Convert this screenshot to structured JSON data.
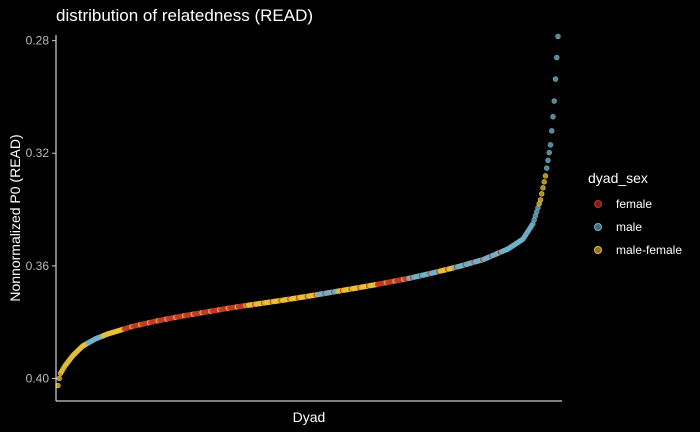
{
  "chart_data": {
    "type": "scatter",
    "title": "distribution of relatedness (READ)",
    "xlabel": "Dyad",
    "ylabel": "Nonnormalized P0 (READ)",
    "y_reversed": true,
    "ylim": [
      0.278,
      0.408
    ],
    "yticks": [
      0.28,
      0.32,
      0.36,
      0.4
    ],
    "ytick_labels": [
      "0.28",
      "0.32",
      "0.36",
      "0.40"
    ],
    "x_ticks_visible": false,
    "grid": false,
    "legend": {
      "title": "dyad_sex",
      "position": "right",
      "entries": [
        {
          "name": "female",
          "color": "#c0392b"
        },
        {
          "name": "male",
          "color": "#72b3c9"
        },
        {
          "name": "male-female",
          "color": "#e6c13a"
        }
      ]
    },
    "x_range": [
      1,
      1000
    ],
    "curve": [
      [
        1,
        0.4025
      ],
      [
        5,
        0.3985
      ],
      [
        15,
        0.3955
      ],
      [
        30,
        0.392
      ],
      [
        50,
        0.3885
      ],
      [
        75,
        0.386
      ],
      [
        100,
        0.3842
      ],
      [
        150,
        0.3815
      ],
      [
        200,
        0.3795
      ],
      [
        250,
        0.3778
      ],
      [
        300,
        0.3763
      ],
      [
        350,
        0.3748
      ],
      [
        400,
        0.3735
      ],
      [
        450,
        0.3722
      ],
      [
        500,
        0.3708
      ],
      [
        550,
        0.3693
      ],
      [
        600,
        0.3678
      ],
      [
        650,
        0.3662
      ],
      [
        700,
        0.3645
      ],
      [
        750,
        0.3625
      ],
      [
        800,
        0.3603
      ],
      [
        850,
        0.3578
      ],
      [
        900,
        0.354
      ],
      [
        930,
        0.3505
      ],
      [
        950,
        0.345
      ],
      [
        965,
        0.3365
      ],
      [
        975,
        0.328
      ],
      [
        985,
        0.317
      ],
      [
        992,
        0.303
      ],
      [
        996,
        0.2905
      ],
      [
        998,
        0.2845
      ],
      [
        1000,
        0.2785
      ]
    ],
    "sex_segments": [
      [
        1,
        60,
        "male-female"
      ],
      [
        60,
        90,
        "male"
      ],
      [
        90,
        130,
        "male-female"
      ],
      [
        130,
        380,
        "female"
      ],
      [
        380,
        520,
        "male-female"
      ],
      [
        520,
        560,
        "male"
      ],
      [
        560,
        640,
        "male-female"
      ],
      [
        640,
        700,
        "female"
      ],
      [
        700,
        760,
        "male"
      ],
      [
        760,
        790,
        "male-female"
      ],
      [
        790,
        960,
        "male"
      ],
      [
        960,
        975,
        "male-female"
      ],
      [
        975,
        1000,
        "male"
      ]
    ],
    "point_count": 400
  }
}
